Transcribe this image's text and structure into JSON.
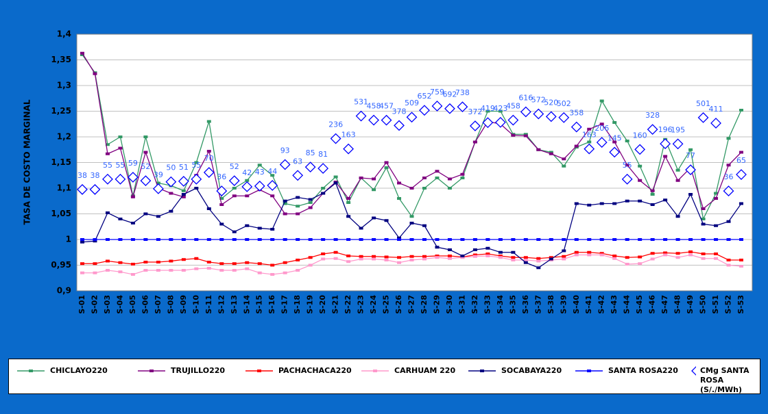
{
  "chart_data": {
    "type": "line",
    "ylabel": "TASA DE COSTO MARGINAL",
    "categories": [
      "S-01",
      "S-02",
      "S-03",
      "S-04",
      "S-05",
      "S-06",
      "S-07",
      "S-08",
      "S-09",
      "S-10",
      "S-11",
      "S-12",
      "S-13",
      "S-14",
      "S-15",
      "S-16",
      "S-17",
      "S-18",
      "S-19",
      "S-20",
      "S-21",
      "S-22",
      "S-23",
      "S-24",
      "S-25",
      "S-26",
      "S-27",
      "S-28",
      "S-29",
      "S-30",
      "S-31",
      "S-32",
      "S-33",
      "S-34",
      "S-35",
      "S-36",
      "S-37",
      "S-38",
      "S-39",
      "S-40",
      "S-41",
      "S-42",
      "S-43",
      "S-44",
      "S-45",
      "S-46",
      "S-47",
      "S-48",
      "S-49",
      "S-50",
      "S-51",
      "S-52",
      "S-53"
    ],
    "ylim": [
      0.9,
      1.4
    ],
    "yticks": [
      {
        "value": 0.9,
        "label": "0,9"
      },
      {
        "value": 0.95,
        "label": "0,95"
      },
      1,
      {
        "value": 1.05,
        "label": "1,05"
      },
      {
        "value": 1.1,
        "label": "1,1"
      },
      {
        "value": 1.15,
        "label": "1,15"
      },
      {
        "value": 1.2,
        "label": "1,2"
      },
      {
        "value": 1.25,
        "label": "1,25"
      },
      {
        "value": 1.3,
        "label": "1,3"
      },
      {
        "value": 1.35,
        "label": "1,35"
      },
      {
        "value": 1.4,
        "label": "1,4"
      }
    ],
    "y2lim": [
      1,
      10000
    ],
    "y2log": true,
    "grid": true,
    "legend": "bottom",
    "series": [
      {
        "name": "CHICLAYO220",
        "color": "#339966",
        "values": [
          1.36,
          1.325,
          1.185,
          1.2,
          1.085,
          1.2,
          1.11,
          1.105,
          1.095,
          1.15,
          1.23,
          1.08,
          1.1,
          1.115,
          1.145,
          1.125,
          1.07,
          1.065,
          1.072,
          1.1,
          1.122,
          1.072,
          1.12,
          1.097,
          1.14,
          1.08,
          1.045,
          1.1,
          1.12,
          1.1,
          1.12,
          1.19,
          1.25,
          1.25,
          1.205,
          1.205,
          1.175,
          1.17,
          1.143,
          1.18,
          1.19,
          1.27,
          1.228,
          1.192,
          1.143,
          1.088,
          1.195,
          1.135,
          1.175,
          1.04,
          1.09,
          1.197,
          1.252
        ]
      },
      {
        "name": "TRUJILLO220",
        "color": "#800080",
        "values": [
          1.363,
          1.323,
          1.167,
          1.178,
          1.083,
          1.17,
          1.1,
          1.09,
          1.083,
          1.125,
          1.172,
          1.068,
          1.085,
          1.085,
          1.097,
          1.085,
          1.05,
          1.05,
          1.062,
          1.09,
          1.112,
          1.08,
          1.12,
          1.118,
          1.15,
          1.11,
          1.1,
          1.12,
          1.133,
          1.118,
          1.127,
          1.19,
          1.23,
          1.225,
          1.203,
          1.202,
          1.175,
          1.167,
          1.157,
          1.182,
          1.215,
          1.225,
          1.19,
          1.145,
          1.115,
          1.095,
          1.162,
          1.115,
          1.14,
          1.06,
          1.08,
          1.145,
          1.17
        ]
      },
      {
        "name": "PACHACHACA220",
        "color": "#ff0000",
        "values": [
          0.953,
          0.953,
          0.958,
          0.955,
          0.952,
          0.956,
          0.956,
          0.958,
          0.961,
          0.963,
          0.956,
          0.953,
          0.953,
          0.955,
          0.953,
          0.95,
          0.955,
          0.96,
          0.965,
          0.972,
          0.975,
          0.968,
          0.967,
          0.967,
          0.966,
          0.965,
          0.967,
          0.967,
          0.968,
          0.968,
          0.966,
          0.97,
          0.972,
          0.968,
          0.965,
          0.965,
          0.963,
          0.965,
          0.967,
          0.975,
          0.975,
          0.973,
          0.968,
          0.965,
          0.966,
          0.973,
          0.974,
          0.973,
          0.976,
          0.972,
          0.972,
          0.96,
          0.96
        ]
      },
      {
        "name": "CARHUAM 220",
        "color": "#ff99cc",
        "values": [
          0.935,
          0.935,
          0.94,
          0.937,
          0.932,
          0.94,
          0.94,
          0.94,
          0.94,
          0.943,
          0.944,
          0.94,
          0.94,
          0.943,
          0.935,
          0.932,
          0.935,
          0.94,
          0.95,
          0.962,
          0.963,
          0.957,
          0.962,
          0.962,
          0.96,
          0.955,
          0.96,
          0.962,
          0.965,
          0.963,
          0.965,
          0.967,
          0.968,
          0.965,
          0.96,
          0.96,
          0.958,
          0.96,
          0.962,
          0.97,
          0.97,
          0.97,
          0.963,
          0.952,
          0.953,
          0.962,
          0.97,
          0.965,
          0.97,
          0.963,
          0.963,
          0.95,
          0.948
        ]
      },
      {
        "name": "SOCABAYA220",
        "color": "#000080",
        "values": [
          0.995,
          0.997,
          1.052,
          1.04,
          1.032,
          1.05,
          1.045,
          1.055,
          1.088,
          1.1,
          1.06,
          1.03,
          1.015,
          1.027,
          1.022,
          1.02,
          1.075,
          1.082,
          1.078,
          1.09,
          1.11,
          1.045,
          1.022,
          1.042,
          1.037,
          1.003,
          1.032,
          1.027,
          0.985,
          0.98,
          0.968,
          0.98,
          0.983,
          0.975,
          0.975,
          0.955,
          0.945,
          0.962,
          0.978,
          1.07,
          1.067,
          1.07,
          1.07,
          1.075,
          1.075,
          1.068,
          1.077,
          1.045,
          1.088,
          1.03,
          1.027,
          1.035,
          1.07
        ]
      },
      {
        "name": "SANTA ROSA220",
        "color": "#0000ff",
        "values": [
          1,
          1,
          1,
          1,
          1,
          1,
          1,
          1,
          1,
          1,
          1,
          1,
          1,
          1,
          1,
          1,
          1,
          1,
          1,
          1,
          1,
          1,
          1,
          1,
          1,
          1,
          1,
          1,
          1,
          1,
          1,
          1,
          1,
          1,
          1,
          1,
          1,
          1,
          1,
          1,
          1,
          1,
          1,
          1,
          1,
          1,
          1,
          1,
          1,
          1,
          1,
          1,
          1
        ]
      },
      {
        "name": "CMg SANTA ROSA (S/./MWh)",
        "color": "#0000ff",
        "axis": "y2",
        "marker": "diamond",
        "values": [
          38,
          38,
          55,
          55,
          59,
          52,
          39,
          50,
          51,
          55,
          70,
          36,
          52,
          42,
          43,
          44,
          93,
          63,
          85,
          81,
          236,
          163,
          531,
          458,
          457,
          378,
          509,
          652,
          759,
          692,
          738,
          372,
          419,
          423,
          458,
          616,
          572,
          520,
          502,
          358,
          163,
          206,
          145,
          55,
          160,
          328,
          196,
          195,
          77,
          501,
          411,
          36,
          65
        ]
      }
    ]
  }
}
